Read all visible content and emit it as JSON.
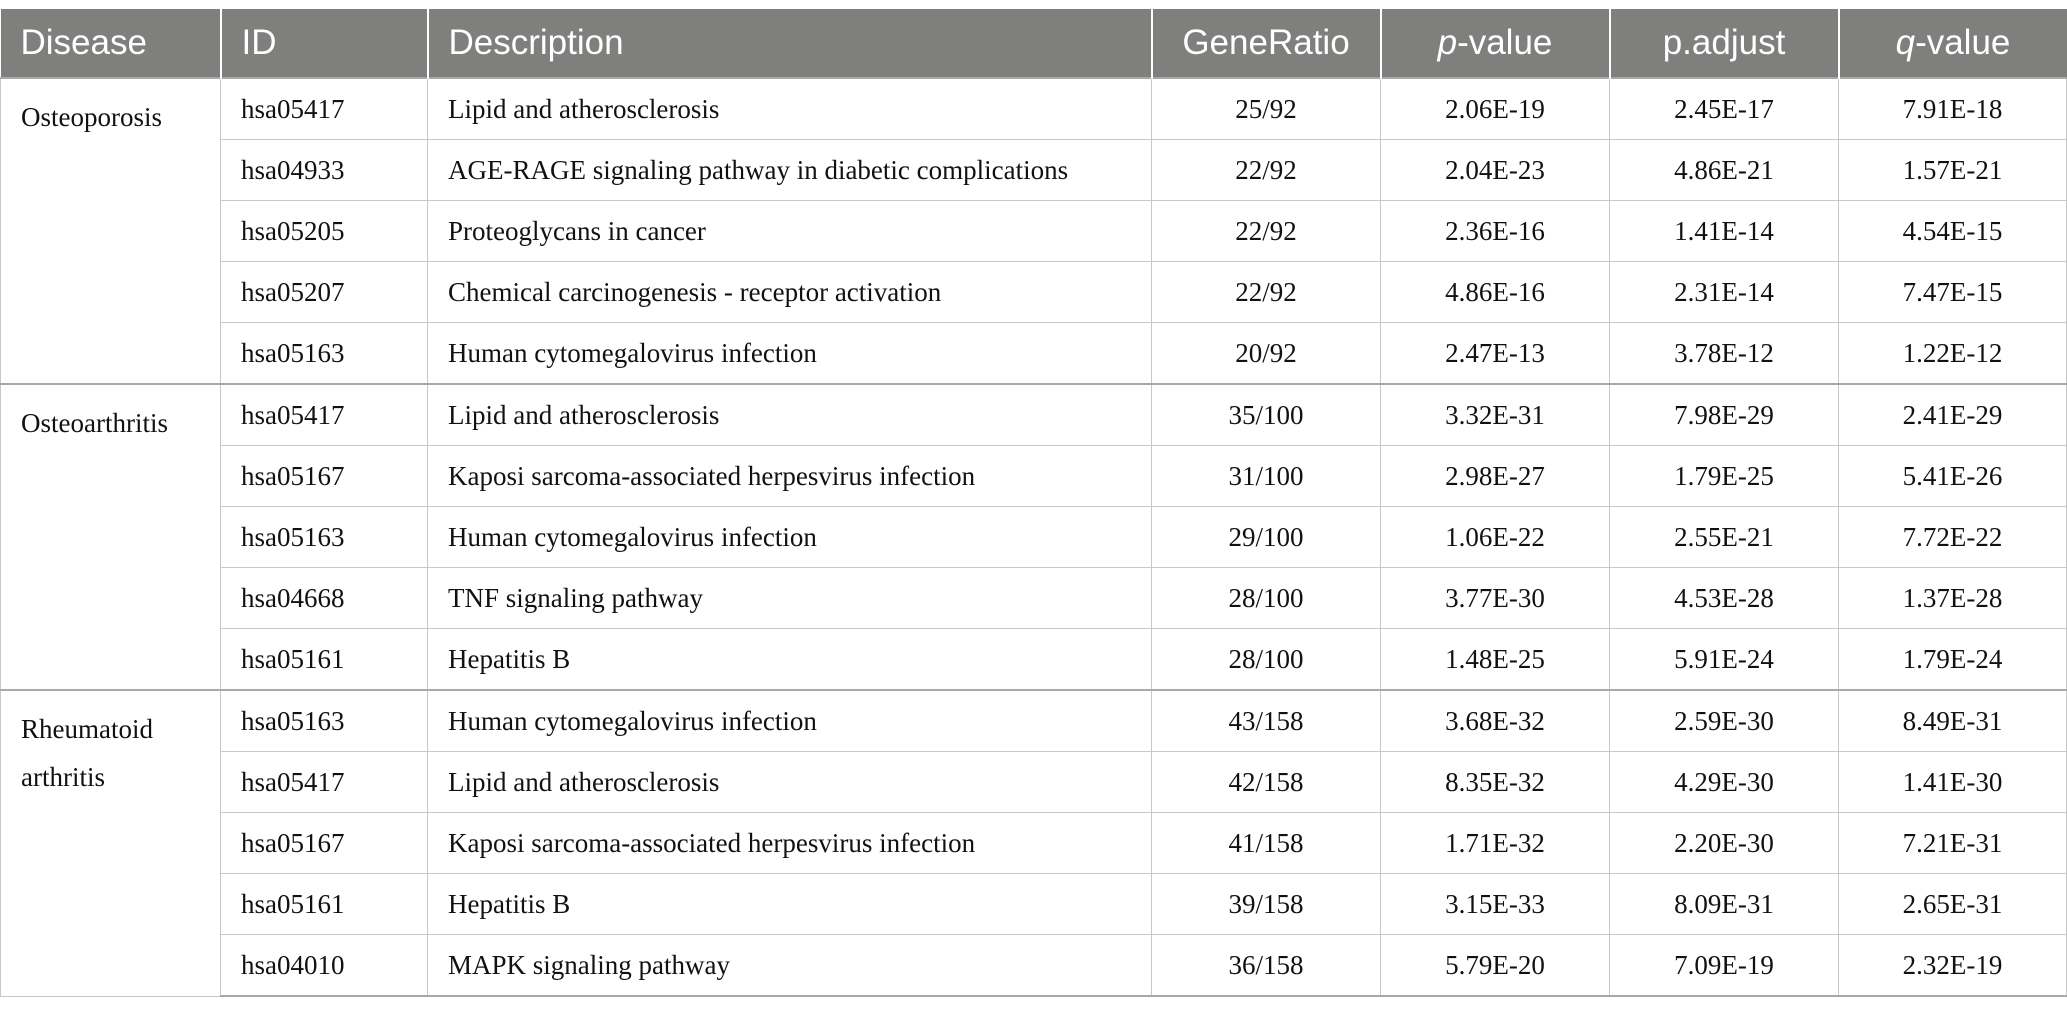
{
  "header": {
    "disease": "Disease",
    "id": "ID",
    "description": "Description",
    "generatio": "GeneRatio",
    "pvalue_sym": "p",
    "pvalue_rest": "-value",
    "padjust": "p.adjust",
    "qvalue_sym": "q",
    "qvalue_rest": "-value"
  },
  "groups": [
    {
      "disease": "Osteoporosis",
      "rows": [
        {
          "id": "hsa05417",
          "description": "Lipid and atherosclerosis",
          "generatio": "25/92",
          "pvalue": "2.06E-19",
          "padjust": "2.45E-17",
          "qvalue": "7.91E-18"
        },
        {
          "id": "hsa04933",
          "description": "AGE-RAGE signaling pathway in diabetic complications",
          "generatio": "22/92",
          "pvalue": "2.04E-23",
          "padjust": "4.86E-21",
          "qvalue": "1.57E-21"
        },
        {
          "id": "hsa05205",
          "description": "Proteoglycans in cancer",
          "generatio": "22/92",
          "pvalue": "2.36E-16",
          "padjust": "1.41E-14",
          "qvalue": "4.54E-15"
        },
        {
          "id": "hsa05207",
          "description": "Chemical carcinogenesis - receptor activation",
          "generatio": "22/92",
          "pvalue": "4.86E-16",
          "padjust": "2.31E-14",
          "qvalue": "7.47E-15"
        },
        {
          "id": "hsa05163",
          "description": "Human cytomegalovirus infection",
          "generatio": "20/92",
          "pvalue": "2.47E-13",
          "padjust": "3.78E-12",
          "qvalue": "1.22E-12"
        }
      ]
    },
    {
      "disease": "Osteoarthritis",
      "rows": [
        {
          "id": "hsa05417",
          "description": "Lipid and atherosclerosis",
          "generatio": "35/100",
          "pvalue": "3.32E-31",
          "padjust": "7.98E-29",
          "qvalue": "2.41E-29"
        },
        {
          "id": "hsa05167",
          "description": "Kaposi sarcoma-associated herpesvirus infection",
          "generatio": "31/100",
          "pvalue": "2.98E-27",
          "padjust": "1.79E-25",
          "qvalue": "5.41E-26"
        },
        {
          "id": "hsa05163",
          "description": "Human cytomegalovirus infection",
          "generatio": "29/100",
          "pvalue": "1.06E-22",
          "padjust": "2.55E-21",
          "qvalue": "7.72E-22"
        },
        {
          "id": "hsa04668",
          "description": "TNF signaling pathway",
          "generatio": "28/100",
          "pvalue": "3.77E-30",
          "padjust": "4.53E-28",
          "qvalue": "1.37E-28"
        },
        {
          "id": "hsa05161",
          "description": "Hepatitis B",
          "generatio": "28/100",
          "pvalue": "1.48E-25",
          "padjust": "5.91E-24",
          "qvalue": "1.79E-24"
        }
      ]
    },
    {
      "disease": "Rheumatoid arthritis",
      "rows": [
        {
          "id": "hsa05163",
          "description": "Human cytomegalovirus infection",
          "generatio": "43/158",
          "pvalue": "3.68E-32",
          "padjust": "2.59E-30",
          "qvalue": "8.49E-31"
        },
        {
          "id": "hsa05417",
          "description": "Lipid and atherosclerosis",
          "generatio": "42/158",
          "pvalue": "8.35E-32",
          "padjust": "4.29E-30",
          "qvalue": "1.41E-30"
        },
        {
          "id": "hsa05167",
          "description": "Kaposi sarcoma-associated herpesvirus infection",
          "generatio": "41/158",
          "pvalue": "1.71E-32",
          "padjust": "2.20E-30",
          "qvalue": "7.21E-31"
        },
        {
          "id": "hsa05161",
          "description": "Hepatitis B",
          "generatio": "39/158",
          "pvalue": "3.15E-33",
          "padjust": "8.09E-31",
          "qvalue": "2.65E-31"
        },
        {
          "id": "hsa04010",
          "description": "MAPK signaling pathway",
          "generatio": "36/158",
          "pvalue": "5.79E-20",
          "padjust": "7.09E-19",
          "qvalue": "2.32E-19"
        }
      ]
    }
  ]
}
